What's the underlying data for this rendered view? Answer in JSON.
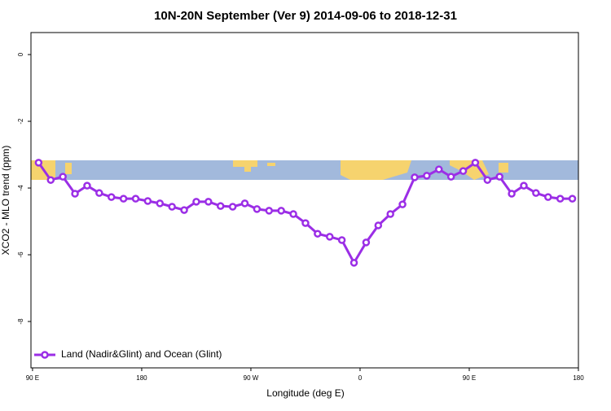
{
  "chart_data": {
    "type": "line",
    "title": "10N-20N September (Ver 9)   2014-09-06 to 2018-12-31",
    "x_label": "Longitude (deg E)",
    "y_label": "XCO2 - MLO trend (ppm)",
    "xlim": [
      88.7,
      540
    ],
    "ylim": [
      -9.39,
      0.66
    ],
    "xticks": [
      {
        "value": 90,
        "label": "90 E"
      },
      180,
      {
        "value": 270,
        "label": "90 W"
      },
      {
        "value": 360,
        "label": "0"
      },
      {
        "value": 450,
        "label": "90 E"
      },
      {
        "value": 540,
        "label": "180"
      }
    ],
    "yticks": [
      -8,
      -6,
      -4,
      -2,
      0
    ],
    "legend": "bottomleft",
    "x": [
      95,
      105,
      115,
      125,
      135,
      145,
      155,
      165,
      175,
      185,
      195,
      205,
      215,
      225,
      235,
      245,
      255,
      265,
      275,
      285,
      295,
      305,
      315,
      325,
      335,
      345,
      355,
      365,
      375,
      385,
      395,
      405,
      415,
      425,
      435,
      445,
      455,
      465,
      475,
      485,
      495,
      505,
      515,
      525,
      535
    ],
    "series": [
      {
        "name": "Land (Nadir&Glint) and Ocean (Glint)",
        "color": "#9b2ee6",
        "values": [
          -3.24,
          -3.76,
          -3.66,
          -4.17,
          -3.93,
          -4.15,
          -4.27,
          -4.32,
          -4.32,
          -4.39,
          -4.46,
          -4.56,
          -4.66,
          -4.41,
          -4.41,
          -4.54,
          -4.56,
          -4.46,
          -4.63,
          -4.68,
          -4.68,
          -4.78,
          -5.05,
          -5.37,
          -5.46,
          -5.56,
          -6.24,
          -5.63,
          -5.12,
          -4.78,
          -4.49,
          -3.68,
          -3.63,
          -3.44,
          -3.66,
          -3.49,
          -3.24,
          -3.76,
          -3.66,
          -4.17,
          -3.93,
          -4.15,
          -4.27,
          -4.32,
          -4.32
        ]
      }
    ]
  }
}
